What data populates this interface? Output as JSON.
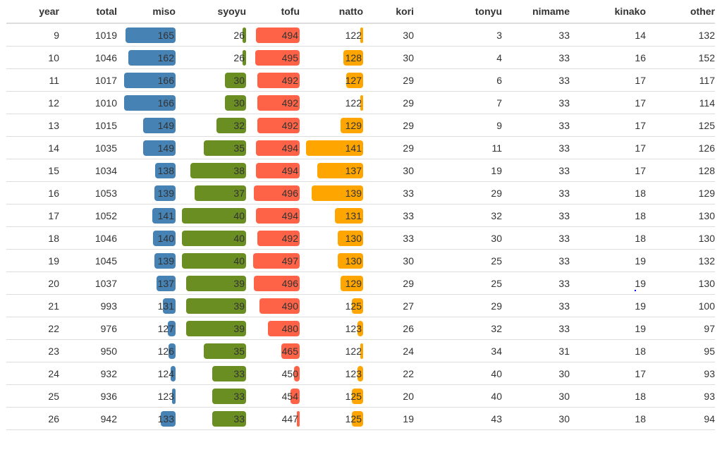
{
  "table": {
    "columns": [
      "year",
      "total",
      "miso",
      "syoyu",
      "tofu",
      "natto",
      "kori",
      "tonyu",
      "nimame",
      "kinako",
      "other"
    ],
    "bar_columns": [
      "miso",
      "syoyu",
      "tofu",
      "natto"
    ],
    "colors": {
      "miso": "#4682b4",
      "syoyu": "#6b8e23",
      "tofu": "#ff6347",
      "natto": "#ffa500"
    },
    "rows": [
      {
        "year": "9",
        "total": "1019",
        "miso": "165",
        "syoyu": "26",
        "tofu": "494",
        "natto": "122",
        "kori": "30",
        "tonyu": "3",
        "nimame": "33",
        "kinako": "14",
        "other": "132"
      },
      {
        "year": "10",
        "total": "1046",
        "miso": "162",
        "syoyu": "26",
        "tofu": "495",
        "natto": "128",
        "kori": "30",
        "tonyu": "4",
        "nimame": "33",
        "kinako": "16",
        "other": "152"
      },
      {
        "year": "11",
        "total": "1017",
        "miso": "166",
        "syoyu": "30",
        "tofu": "492",
        "natto": "127",
        "kori": "29",
        "tonyu": "6",
        "nimame": "33",
        "kinako": "17",
        "other": "117"
      },
      {
        "year": "12",
        "total": "1010",
        "miso": "166",
        "syoyu": "30",
        "tofu": "492",
        "natto": "122",
        "kori": "29",
        "tonyu": "7",
        "nimame": "33",
        "kinako": "17",
        "other": "114"
      },
      {
        "year": "13",
        "total": "1015",
        "miso": "149",
        "syoyu": "32",
        "tofu": "492",
        "natto": "129",
        "kori": "29",
        "tonyu": "9",
        "nimame": "33",
        "kinako": "17",
        "other": "125"
      },
      {
        "year": "14",
        "total": "1035",
        "miso": "149",
        "syoyu": "35",
        "tofu": "494",
        "natto": "141",
        "kori": "29",
        "tonyu": "11",
        "nimame": "33",
        "kinako": "17",
        "other": "126"
      },
      {
        "year": "15",
        "total": "1034",
        "miso": "138",
        "syoyu": "38",
        "tofu": "494",
        "natto": "137",
        "kori": "30",
        "tonyu": "19",
        "nimame": "33",
        "kinako": "17",
        "other": "128"
      },
      {
        "year": "16",
        "total": "1053",
        "miso": "139",
        "syoyu": "37",
        "tofu": "496",
        "natto": "139",
        "kori": "33",
        "tonyu": "29",
        "nimame": "33",
        "kinako": "18",
        "other": "129"
      },
      {
        "year": "17",
        "total": "1052",
        "miso": "141",
        "syoyu": "40",
        "tofu": "494",
        "natto": "131",
        "kori": "33",
        "tonyu": "32",
        "nimame": "33",
        "kinako": "18",
        "other": "130"
      },
      {
        "year": "18",
        "total": "1046",
        "miso": "140",
        "syoyu": "40",
        "tofu": "492",
        "natto": "130",
        "kori": "33",
        "tonyu": "30",
        "nimame": "33",
        "kinako": "18",
        "other": "130"
      },
      {
        "year": "19",
        "total": "1045",
        "miso": "139",
        "syoyu": "40",
        "tofu": "497",
        "natto": "130",
        "kori": "30",
        "tonyu": "25",
        "nimame": "33",
        "kinako": "19",
        "other": "132"
      },
      {
        "year": "20",
        "total": "1037",
        "miso": "137",
        "syoyu": "39",
        "tofu": "496",
        "natto": "129",
        "kori": "29",
        "tonyu": "25",
        "nimame": "33",
        "kinako": "19",
        "other": "130"
      },
      {
        "year": "21",
        "total": "993",
        "miso": "131",
        "syoyu": "39",
        "tofu": "490",
        "natto": "125",
        "kori": "27",
        "tonyu": "29",
        "nimame": "33",
        "kinako": "19",
        "other": "100"
      },
      {
        "year": "22",
        "total": "976",
        "miso": "127",
        "syoyu": "39",
        "tofu": "480",
        "natto": "123",
        "kori": "26",
        "tonyu": "32",
        "nimame": "33",
        "kinako": "19",
        "other": "97"
      },
      {
        "year": "23",
        "total": "950",
        "miso": "126",
        "syoyu": "35",
        "tofu": "465",
        "natto": "122",
        "kori": "24",
        "tonyu": "34",
        "nimame": "31",
        "kinako": "18",
        "other": "95"
      },
      {
        "year": "24",
        "total": "932",
        "miso": "124",
        "syoyu": "33",
        "tofu": "450",
        "natto": "123",
        "kori": "22",
        "tonyu": "40",
        "nimame": "30",
        "kinako": "17",
        "other": "93"
      },
      {
        "year": "25",
        "total": "936",
        "miso": "123",
        "syoyu": "33",
        "tofu": "454",
        "natto": "125",
        "kori": "20",
        "tonyu": "40",
        "nimame": "30",
        "kinako": "18",
        "other": "93"
      },
      {
        "year": "26",
        "total": "942",
        "miso": "133",
        "syoyu": "33",
        "tofu": "447",
        "natto": "125",
        "kori": "19",
        "tonyu": "43",
        "nimame": "30",
        "kinako": "18",
        "other": "94"
      }
    ]
  }
}
